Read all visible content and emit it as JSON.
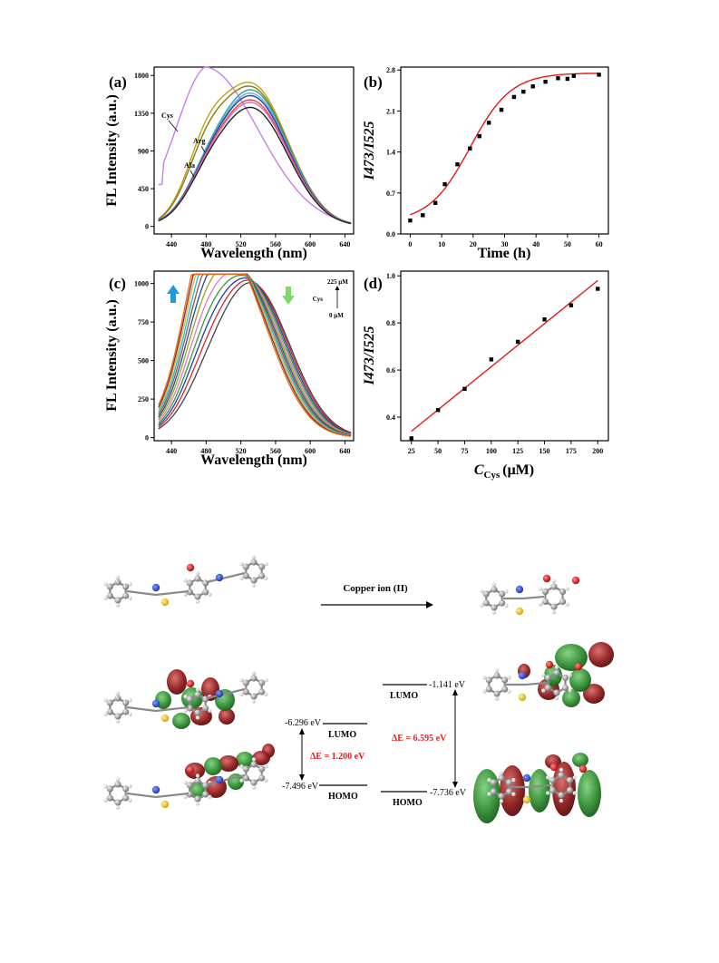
{
  "panels": {
    "a": {
      "label": "(a)"
    },
    "b": {
      "label": "(b)"
    },
    "c": {
      "label": "(c)"
    },
    "d": {
      "label": "(d)"
    }
  },
  "chart_data": [
    {
      "id": "a",
      "type": "line",
      "xlabel": "Wavelength (nm)",
      "ylabel": "FL Intensity (a.u.)",
      "xlim": [
        420,
        650
      ],
      "ylim": [
        -90,
        1900
      ],
      "xticks": [
        440,
        480,
        520,
        560,
        600,
        640
      ],
      "yticks": [
        0,
        450,
        900,
        1350,
        1800
      ],
      "annotations": [
        "Cys",
        "Arg",
        "Ala"
      ],
      "series": [
        {
          "name": "Cys",
          "color": "#c77ee6",
          "peak_x": 478,
          "peak_y": 1900
        },
        {
          "name": "Arg",
          "color": "#b9a318",
          "peak_x": 532,
          "peak_y": 1690
        },
        {
          "name": "Ala",
          "color": "#8a7a12",
          "peak_x": 532,
          "peak_y": 1650
        },
        {
          "color": "#2aa6a6",
          "peak_x": 532,
          "peak_y": 1620
        },
        {
          "color": "#6fa8dc",
          "peak_x": 532,
          "peak_y": 1580
        },
        {
          "color": "#1e3fa8",
          "peak_x": 532,
          "peak_y": 1550
        },
        {
          "color": "#d64a4a",
          "peak_x": 532,
          "peak_y": 1500
        },
        {
          "color": "#e06fb0",
          "peak_x": 532,
          "peak_y": 1470
        },
        {
          "color": "#222222",
          "peak_x": 532,
          "peak_y": 1410
        }
      ]
    },
    {
      "id": "b",
      "type": "scatter",
      "xlabel": "Time (h)",
      "ylabel": "I473/I525",
      "xlim": [
        -3,
        63
      ],
      "ylim": [
        0,
        2.85
      ],
      "xticks": [
        0,
        10,
        20,
        30,
        40,
        50,
        60
      ],
      "yticks": [
        0.0,
        0.7,
        1.4,
        2.1,
        2.8
      ],
      "points_x": [
        0,
        4,
        8,
        11,
        15,
        19,
        22,
        25,
        29,
        33,
        36,
        39,
        43,
        47,
        50,
        52,
        60
      ],
      "points_y": [
        0.23,
        0.32,
        0.53,
        0.85,
        1.19,
        1.46,
        1.67,
        1.9,
        2.12,
        2.34,
        2.43,
        2.52,
        2.6,
        2.66,
        2.65,
        2.7,
        2.72
      ],
      "fit": "sigmoidal"
    },
    {
      "id": "c",
      "type": "line",
      "xlabel": "Wavelength (nm)",
      "ylabel": "FL Intensity (a.u.)",
      "xlim": [
        420,
        650
      ],
      "ylim": [
        -20,
        1080
      ],
      "xticks": [
        440,
        480,
        520,
        560,
        600,
        640
      ],
      "yticks": [
        0,
        250,
        500,
        750,
        1000
      ],
      "legend": {
        "top": "225 μM",
        "label": "Cys",
        "bottom": "0 μM"
      },
      "series": [
        {
          "color": "#444444",
          "peak_x": 532,
          "peak_y": 1000,
          "shoulder_y": 110
        },
        {
          "color": "#d62728",
          "peak_x": 530,
          "peak_y": 1010,
          "shoulder_y": 200
        },
        {
          "color": "#1f3cb4",
          "peak_x": 528,
          "peak_y": 1015,
          "shoulder_y": 280
        },
        {
          "color": "#2ca02c",
          "peak_x": 526,
          "peak_y": 1020,
          "shoulder_y": 360
        },
        {
          "color": "#e377c2",
          "peak_x": 524,
          "peak_y": 1025,
          "shoulder_y": 460
        },
        {
          "color": "#a0a01e",
          "peak_x": 522,
          "peak_y": 1030,
          "shoulder_y": 560
        },
        {
          "color": "#1f4f8f",
          "peak_x": 520,
          "peak_y": 1035,
          "shoulder_y": 650
        },
        {
          "color": "#8c564b",
          "peak_x": 518,
          "peak_y": 1040,
          "shoulder_y": 740
        },
        {
          "color": "#17becf",
          "peak_x": 516,
          "peak_y": 1045,
          "shoulder_y": 820
        },
        {
          "color": "#e1b23a",
          "peak_x": 514,
          "peak_y": 1050,
          "shoulder_y": 900
        },
        {
          "color": "#7b2c2c",
          "peak_x": 512,
          "peak_y": 1055,
          "shoulder_y": 960
        },
        {
          "color": "#e66a1f",
          "peak_x": 510,
          "peak_y": 1060,
          "shoulder_y": 1010
        }
      ]
    },
    {
      "id": "d",
      "type": "scatter",
      "xlabel_main": "C",
      "xlabel_sub": "Cys",
      "xlabel_unit": "(μM)",
      "ylabel": "I473/I525",
      "xlim": [
        15,
        210
      ],
      "ylim": [
        0.3,
        1.02
      ],
      "xticks": [
        25,
        50,
        75,
        100,
        125,
        150,
        175,
        200
      ],
      "yticks": [
        0.4,
        0.6,
        0.8,
        1.0
      ],
      "points_x": [
        25,
        50,
        75,
        100,
        125,
        150,
        175,
        200
      ],
      "points_y": [
        0.31,
        0.43,
        0.52,
        0.645,
        0.72,
        0.815,
        0.875,
        0.945
      ],
      "fit": {
        "type": "linear",
        "x1": 25,
        "y1": 0.34,
        "x2": 200,
        "y2": 0.98
      }
    }
  ],
  "scheme": {
    "reaction_label": "Copper ion (II)",
    "left": {
      "lumo_energy": "-6.296 eV",
      "lumo_label": "LUMO",
      "homo_energy": "-7.496 eV",
      "homo_label": "HOMO",
      "gap": "ΔE = 1.200 eV"
    },
    "right": {
      "lumo_energy": "-1.141 eV",
      "lumo_label": "LUMO",
      "homo_energy": "-7.736 eV",
      "homo_label": "HOMO",
      "gap": "ΔE = 6.595 eV"
    },
    "colors": {
      "positive_lobe": "#2f8a2f",
      "negative_lobe": "#8b1a1a",
      "gap_text": "#e02020"
    }
  }
}
